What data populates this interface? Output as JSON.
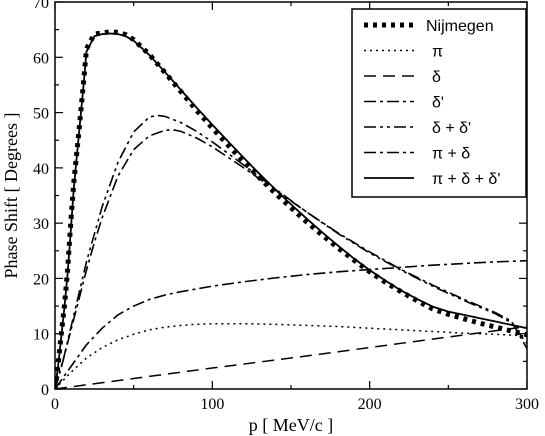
{
  "chart_data": {
    "type": "line",
    "title": "",
    "xlabel": "p [ MeV/c ]",
    "ylabel": "Phase Shift [ Degrees ]",
    "xlim": [
      0,
      300
    ],
    "ylim": [
      0,
      70
    ],
    "xticks": [
      0,
      100,
      200,
      300
    ],
    "yticks": [
      0,
      10,
      20,
      30,
      40,
      50,
      60,
      70
    ],
    "grid": false,
    "legend_position": "top-right",
    "series": [
      {
        "name": "Nijmegen",
        "style": "dotted-thick",
        "color": "#000000",
        "x": [
          0,
          1,
          2,
          4,
          6,
          8,
          10,
          12,
          15,
          18,
          20,
          25,
          30,
          35,
          40,
          45,
          50,
          60,
          70,
          80,
          90,
          100,
          110,
          120,
          130,
          140,
          150,
          160,
          170,
          180,
          190,
          200,
          210,
          220,
          230,
          240,
          250,
          260,
          270,
          280,
          290,
          300
        ],
        "y": [
          0,
          2.0,
          4.5,
          10,
          15,
          21.5,
          30,
          37.5,
          46,
          55,
          61.5,
          64.2,
          64.4,
          64.6,
          64.5,
          64.1,
          63.2,
          60.5,
          57.2,
          53.8,
          50.4,
          47.2,
          44.1,
          41.1,
          38.2,
          35.4,
          32.8,
          30.2,
          27.8,
          25.5,
          23.3,
          21.2,
          19.3,
          17.6,
          16.0,
          14.5,
          13.5,
          12.7,
          11.9,
          11.2,
          10.5,
          9.8
        ]
      },
      {
        "name": "π",
        "style": "dotted",
        "color": "#000000",
        "x": [
          0,
          5,
          10,
          20,
          30,
          40,
          50,
          60,
          70,
          80,
          90,
          100,
          110,
          120,
          140,
          160,
          180,
          200,
          220,
          240,
          260,
          280,
          300
        ],
        "y": [
          0,
          1.5,
          3.0,
          5.6,
          7.5,
          8.9,
          9.9,
          10.7,
          11.2,
          11.5,
          11.7,
          11.8,
          11.8,
          11.8,
          11.7,
          11.5,
          11.3,
          11.0,
          10.7,
          10.4,
          10.1,
          9.9,
          9.6
        ]
      },
      {
        "name": "δ",
        "style": "dashed",
        "color": "#000000",
        "x": [
          0,
          50,
          100,
          150,
          200,
          250,
          300
        ],
        "y": [
          0,
          1.9,
          3.8,
          5.6,
          7.5,
          9.4,
          11.3
        ]
      },
      {
        "name": "δ'",
        "style": "dashdot",
        "color": "#000000",
        "x": [
          0,
          10,
          20,
          30,
          40,
          50,
          60,
          70,
          80,
          100,
          120,
          140,
          160,
          180,
          200,
          220,
          240,
          260,
          280,
          300
        ],
        "y": [
          0,
          4,
          8,
          11,
          13.4,
          15.0,
          16.2,
          17.0,
          17.6,
          18.6,
          19.4,
          20.1,
          20.7,
          21.2,
          21.6,
          22.0,
          22.4,
          22.7,
          23.0,
          23.2
        ]
      },
      {
        "name": "δ + δ'",
        "style": "dashdotdot",
        "color": "#000000",
        "x": [
          0,
          5,
          10,
          15,
          20,
          25,
          30,
          40,
          50,
          60,
          65,
          70,
          80,
          90,
          100,
          120,
          140,
          160,
          180,
          200,
          220,
          240,
          260,
          280,
          290,
          300
        ],
        "y": [
          0,
          5,
          11,
          17,
          23,
          28,
          33,
          41,
          46.5,
          49.2,
          49.5,
          49.3,
          48.2,
          46.6,
          44.7,
          40.5,
          36.2,
          32.0,
          28.1,
          24.6,
          21.5,
          18.6,
          16.0,
          13.6,
          12.0,
          8.2
        ]
      },
      {
        "name": "π + δ",
        "style": "dashdot",
        "color": "#000000",
        "x": [
          0,
          5,
          10,
          15,
          20,
          25,
          30,
          40,
          50,
          60,
          70,
          75,
          80,
          90,
          100,
          120,
          140,
          160,
          180,
          200,
          220,
          240,
          260,
          280,
          290,
          300
        ],
        "y": [
          0,
          5,
          10.5,
          16,
          21.5,
          26.5,
          31,
          38.5,
          43.3,
          45.8,
          46.8,
          46.9,
          46.6,
          45.4,
          43.8,
          40.0,
          36.0,
          32.0,
          28.2,
          24.8,
          21.6,
          18.8,
          16.2,
          13.8,
          12.3,
          7.3
        ]
      },
      {
        "name": "π + δ + δ'",
        "style": "solid",
        "color": "#000000",
        "x": [
          0,
          2,
          4,
          6,
          8,
          10,
          12,
          15,
          18,
          20,
          25,
          30,
          35,
          40,
          45,
          50,
          60,
          70,
          80,
          90,
          100,
          110,
          120,
          130,
          140,
          150,
          160,
          170,
          180,
          190,
          200,
          210,
          220,
          230,
          240,
          250,
          260,
          270,
          280,
          290,
          300
        ],
        "y": [
          0,
          4.2,
          9.5,
          14.8,
          20.8,
          28.5,
          36.5,
          45.5,
          54.5,
          61.0,
          63.8,
          64.2,
          64.3,
          64.2,
          63.8,
          63.0,
          60.4,
          57.3,
          54.1,
          50.9,
          47.8,
          44.8,
          41.8,
          38.9,
          36.1,
          33.4,
          30.8,
          28.3,
          25.9,
          23.6,
          21.5,
          19.6,
          17.8,
          16.3,
          14.9,
          14.0,
          13.4,
          12.8,
          12.2,
          11.6,
          11.0
        ]
      }
    ]
  }
}
